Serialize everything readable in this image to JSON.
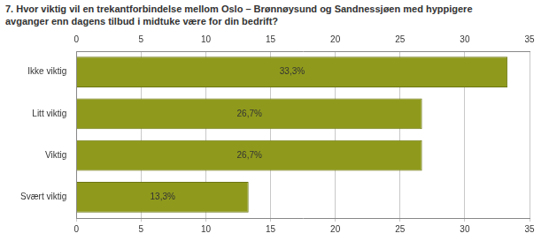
{
  "chart_data": {
    "type": "bar",
    "orientation": "horizontal",
    "title": "7. Hvor viktig vil en trekantforbindelse mellom Oslo – Brønnøysund og Sandnessjøen med hyppigere avganger enn dagens tilbud i midtuke være for din bedrift?",
    "categories": [
      "Ikke viktig",
      "Litt viktig",
      "Viktig",
      "Svært viktig"
    ],
    "values": [
      33.3,
      26.7,
      26.7,
      13.3
    ],
    "value_labels": [
      "33,3%",
      "26,7%",
      "26,7%",
      "13,3%"
    ],
    "data_labels": true,
    "color": "#8f9a1c",
    "xlim": [
      0,
      35
    ],
    "xticks": [
      0,
      5,
      10,
      15,
      20,
      25,
      30,
      35
    ],
    "grid": true
  }
}
